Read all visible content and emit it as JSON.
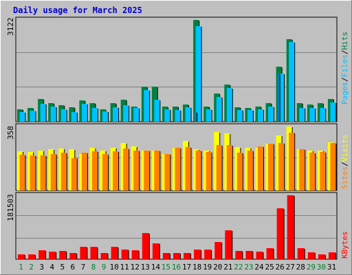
{
  "colors": {
    "background": "#c0c0c0",
    "hits": "#008040",
    "files": "#00c0ff",
    "pages": "#00c0ff",
    "visits": "#ffff00",
    "sites": "#ff8000",
    "kbytes": "#ff0000",
    "weekend_day": "#00802f",
    "weekday": "#000000"
  },
  "chart_data": [
    {
      "type": "bar",
      "title": "Daily usage for March 2025",
      "ymax_label": "3122",
      "ylim": [
        0,
        3122
      ],
      "categories": [
        "1",
        "2",
        "3",
        "4",
        "5",
        "6",
        "7",
        "8",
        "9",
        "10",
        "11",
        "12",
        "13",
        "14",
        "15",
        "16",
        "17",
        "18",
        "19",
        "20",
        "21",
        "22",
        "23",
        "24",
        "25",
        "26",
        "27",
        "28",
        "29",
        "30",
        "31"
      ],
      "weekend_days": [
        "1",
        "2",
        "8",
        "9",
        "15",
        "16",
        "22",
        "23",
        "29",
        "30"
      ],
      "legend": [
        {
          "text": "Pages",
          "color": "#00c0ff"
        },
        {
          "text": "/",
          "color": "#000000"
        },
        {
          "text": "Files",
          "color": "#00c0ff"
        },
        {
          "text": "/",
          "color": "#000000"
        },
        {
          "text": "Hits",
          "color": "#008040"
        }
      ],
      "series": [
        {
          "name": "Hits",
          "values": [
            390,
            420,
            690,
            570,
            500,
            440,
            650,
            580,
            370,
            560,
            670,
            470,
            1070,
            1070,
            460,
            470,
            530,
            3122,
            470,
            860,
            1140,
            440,
            420,
            470,
            560,
            1690,
            2540,
            570,
            530,
            570,
            690
          ]
        },
        {
          "name": "Files",
          "values": [
            300,
            340,
            540,
            460,
            380,
            300,
            540,
            420,
            310,
            450,
            510,
            430,
            980,
            680,
            380,
            360,
            440,
            2930,
            390,
            760,
            1040,
            350,
            350,
            380,
            460,
            1470,
            2450,
            430,
            420,
            430,
            600
          ]
        },
        {
          "name": "Pages",
          "values": [
            0,
            0,
            0,
            0,
            0,
            0,
            0,
            0,
            0,
            0,
            0,
            0,
            0,
            0,
            0,
            0,
            0,
            300,
            0,
            0,
            0,
            0,
            0,
            0,
            0,
            1470,
            0,
            0,
            0,
            0,
            0
          ]
        }
      ]
    },
    {
      "type": "bar",
      "ymax_label": "358",
      "ylim": [
        0,
        358
      ],
      "categories": [
        "1",
        "2",
        "3",
        "4",
        "5",
        "6",
        "7",
        "8",
        "9",
        "10",
        "11",
        "12",
        "13",
        "14",
        "15",
        "16",
        "17",
        "18",
        "19",
        "20",
        "21",
        "22",
        "23",
        "24",
        "25",
        "26",
        "27",
        "28",
        "29",
        "30",
        "31"
      ],
      "legend": [
        {
          "text": "Sites",
          "color": "#ff8000"
        },
        {
          "text": "/",
          "color": "#000000"
        },
        {
          "text": "Visits",
          "color": "#ffff00"
        }
      ],
      "series": [
        {
          "name": "Visits",
          "values": [
            220,
            215,
            225,
            230,
            235,
            230,
            205,
            240,
            225,
            240,
            265,
            245,
            225,
            225,
            205,
            238,
            277,
            230,
            225,
            328,
            318,
            244,
            240,
            238,
            260,
            308,
            358,
            230,
            225,
            225,
            270
          ]
        },
        {
          "name": "Sites",
          "values": [
            200,
            195,
            195,
            205,
            210,
            180,
            213,
            218,
            205,
            220,
            235,
            225,
            224,
            222,
            205,
            238,
            242,
            225,
            215,
            255,
            255,
            212,
            225,
            248,
            260,
            265,
            325,
            230,
            212,
            215,
            265
          ]
        }
      ]
    },
    {
      "type": "bar",
      "ymax_label": "181503",
      "ylim": [
        0,
        181503
      ],
      "categories": [
        "1",
        "2",
        "3",
        "4",
        "5",
        "6",
        "7",
        "8",
        "9",
        "10",
        "11",
        "12",
        "13",
        "14",
        "15",
        "16",
        "17",
        "18",
        "19",
        "20",
        "21",
        "22",
        "23",
        "24",
        "25",
        "26",
        "27",
        "28",
        "29",
        "30",
        "31"
      ],
      "legend": [
        {
          "text": "KBytes",
          "color": "#ff0000"
        }
      ],
      "series": [
        {
          "name": "KBytes",
          "values": [
            14000,
            14000,
            25000,
            21000,
            23000,
            17000,
            36000,
            36000,
            17000,
            36000,
            27000,
            25000,
            75000,
            45000,
            18000,
            18000,
            17000,
            27000,
            27000,
            48000,
            82000,
            23000,
            23000,
            21000,
            32000,
            144000,
            181503,
            32000,
            19000,
            14000,
            19000
          ]
        }
      ]
    }
  ]
}
